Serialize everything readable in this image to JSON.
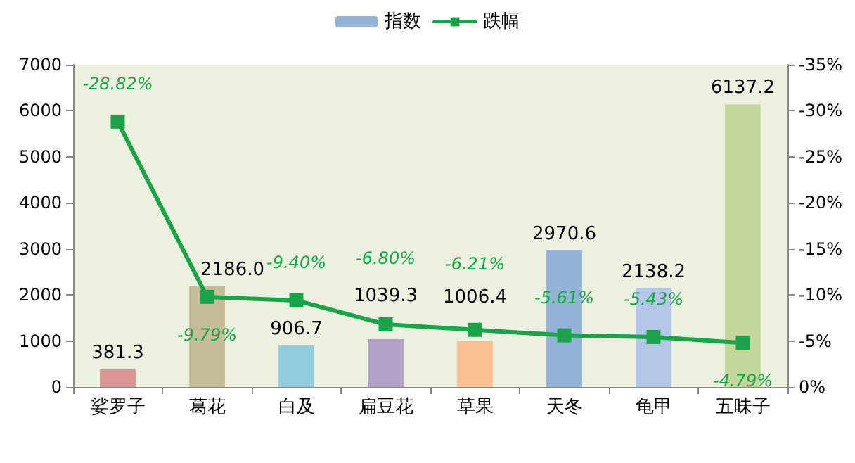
{
  "chart_data": {
    "type": "bar",
    "categories": [
      "娑罗子",
      "葛花",
      "白及",
      "扁豆花",
      "草果",
      "天冬",
      "龟甲",
      "五味子"
    ],
    "series": [
      {
        "name": "指数",
        "color": "#95b3d7",
        "colors": [
          "#d99694",
          "#c4bd97",
          "#93cddd",
          "#b3a2c7",
          "#fac090",
          "#95b3d7",
          "#b4c7e7",
          "#c3d69b"
        ],
        "values": [
          381.3,
          2186.0,
          906.7,
          1039.3,
          1006.4,
          2970.6,
          2138.2,
          6137.2
        ],
        "value_labels": [
          "381.3",
          "2186.0",
          "906.7",
          "1039.3",
          "1006.4",
          "2970.6",
          "2138.2",
          "6137.2"
        ]
      },
      {
        "name": "跌幅",
        "type": "line",
        "axis": "y2",
        "color": "#1aa34a",
        "values": [
          -28.82,
          -9.79,
          -9.4,
          -6.8,
          -6.21,
          -5.61,
          -5.43,
          -4.79
        ],
        "value_labels": [
          "-28.82%",
          "-9.79%",
          "-9.40%",
          "-6.80%",
          "-6.21%",
          "-5.61%",
          "-5.43%",
          "-4.79%"
        ]
      }
    ],
    "ylim": [
      0,
      7000
    ],
    "yticks": [
      0,
      1000,
      2000,
      3000,
      4000,
      5000,
      6000,
      7000
    ],
    "y2lim": [
      0,
      -35
    ],
    "y2ticks": [
      {
        "value": 0,
        "label": "0%"
      },
      {
        "value": -5,
        "label": "-5%"
      },
      {
        "value": -10,
        "label": "-10%"
      },
      {
        "value": -15,
        "label": "-15%"
      },
      {
        "value": -20,
        "label": "-20%"
      },
      {
        "value": -25,
        "label": "-25%"
      },
      {
        "value": -30,
        "label": "-30%"
      },
      {
        "value": -35,
        "label": "-35%"
      }
    ],
    "legend": "top",
    "grid": false,
    "marker": "square",
    "line_style": "solid"
  }
}
